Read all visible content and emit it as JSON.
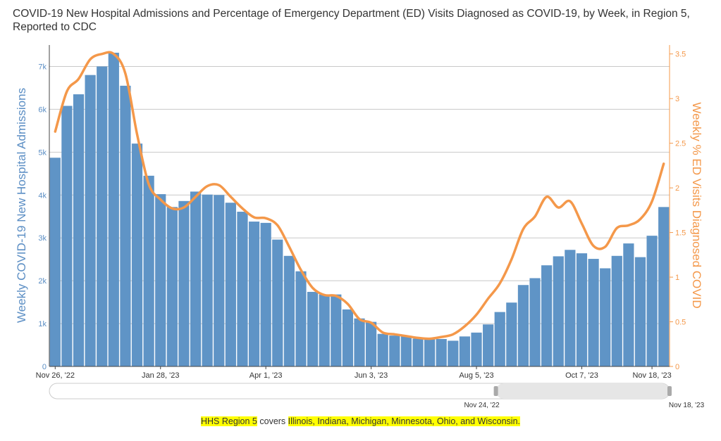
{
  "title": "COVID-19 New Hospital Admissions and Percentage of Emergency Department (ED) Visits Diagnosed as COVID-19, by Week, in Region 5, Reported to CDC",
  "footnote": {
    "prefix": "HHS Region 5",
    "middle": " covers ",
    "states": "Illinois, Indiana, Michigan, Minnesota, Ohio, and Wisconsin."
  },
  "colors": {
    "bars": "#5f94c6",
    "line": "#f4984a",
    "left_axis_text": "#5b8ec4",
    "right_axis_text": "#f4984a",
    "grid": "#c8c8c8",
    "highlight": "#ffff00"
  },
  "range_slider": {
    "start_label": "Nov 24, '22",
    "end_label": "Nov 18, '23",
    "selected_from_fraction": 0.72,
    "selected_to_fraction": 1.0
  },
  "chart_data": {
    "type": "bar",
    "title": "COVID-19 New Hospital Admissions and Percentage of Emergency Department (ED) Visits Diagnosed as COVID-19, by Week, in Region 5, Reported to CDC",
    "x_tick_labels": [
      "Nov 26, '22",
      "Jan 28, '23",
      "Apr 1, '23",
      "Jun 3, '23",
      "Aug 5, '23",
      "Oct 7, '23",
      "Nov 18, '23"
    ],
    "x_tick_indices": [
      0,
      9,
      18,
      27,
      36,
      45,
      51
    ],
    "ylabel": "Weekly COVID-19 New Hospital Admissions",
    "ylabel_right": "Weekly % ED Visits Diagnosed COVID",
    "ylim": [
      0,
      7500
    ],
    "ylim_right": [
      0,
      3.6
    ],
    "y_ticks": [
      0,
      1000,
      2000,
      3000,
      4000,
      5000,
      6000,
      7000
    ],
    "y_tick_labels": [
      "0",
      "1k",
      "2k",
      "3k",
      "4k",
      "5k",
      "6k",
      "7k"
    ],
    "y_ticks_right": [
      0,
      0.5,
      1,
      1.5,
      2,
      2.5,
      3,
      3.5
    ],
    "y_tick_labels_right": [
      "0",
      "0.5",
      "1",
      "1.5",
      "2",
      "2.5",
      "3",
      "3.5"
    ],
    "grid": true,
    "series": [
      {
        "name": "Weekly COVID-19 New Hospital Admissions",
        "type": "bar",
        "axis": "left",
        "values": [
          4870,
          6080,
          6350,
          6800,
          7000,
          7320,
          6550,
          5200,
          4450,
          4020,
          3720,
          3860,
          4080,
          4010,
          4000,
          3820,
          3610,
          3380,
          3350,
          2960,
          2580,
          2220,
          1740,
          1680,
          1680,
          1330,
          1120,
          1040,
          760,
          720,
          700,
          650,
          660,
          640,
          600,
          700,
          790,
          980,
          1270,
          1490,
          1900,
          2060,
          2360,
          2570,
          2720,
          2640,
          2510,
          2290,
          2580,
          2870,
          2550,
          3050,
          3720
        ]
      },
      {
        "name": "Weekly % ED Visits Diagnosed COVID",
        "type": "line",
        "axis": "right",
        "values": [
          2.63,
          3.08,
          3.22,
          3.44,
          3.5,
          3.5,
          3.28,
          2.6,
          2.04,
          1.87,
          1.77,
          1.78,
          1.9,
          2.02,
          2.03,
          1.9,
          1.77,
          1.67,
          1.66,
          1.58,
          1.34,
          1.08,
          0.88,
          0.8,
          0.79,
          0.7,
          0.53,
          0.49,
          0.38,
          0.36,
          0.34,
          0.32,
          0.31,
          0.33,
          0.36,
          0.45,
          0.58,
          0.76,
          0.93,
          1.2,
          1.54,
          1.68,
          1.9,
          1.78,
          1.85,
          1.6,
          1.35,
          1.34,
          1.55,
          1.58,
          1.65,
          1.85,
          2.27
        ]
      }
    ]
  }
}
